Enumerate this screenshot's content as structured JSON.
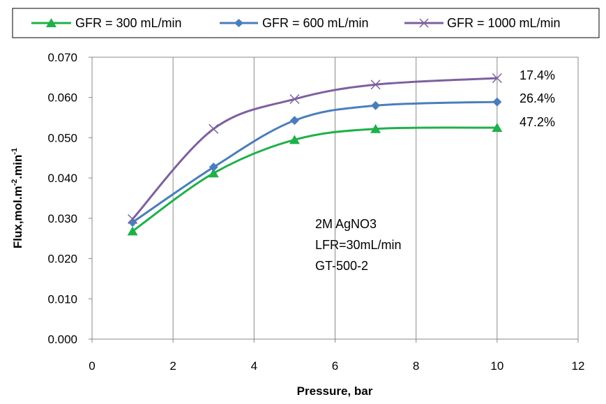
{
  "chart_data": {
    "type": "line",
    "title": "",
    "xlabel": "Pressure, bar",
    "ylabel": {
      "base": "Flux,mol.m",
      "exp1": "-2",
      "mid": ".min",
      "exp2": "-1"
    },
    "xlim": [
      0,
      12
    ],
    "ylim": [
      0,
      0.07
    ],
    "xticks": [
      0,
      2,
      4,
      6,
      8,
      10,
      12
    ],
    "yticks": [
      0,
      0.01,
      0.02,
      0.03,
      0.04,
      0.05,
      0.06,
      0.07
    ],
    "ytick_labels": [
      "0.000",
      "0.010",
      "0.020",
      "0.030",
      "0.040",
      "0.050",
      "0.060",
      "0.070"
    ],
    "xtick_labels": [
      "0",
      "2",
      "4",
      "6",
      "8",
      "10",
      "12"
    ],
    "grid": "vertical",
    "legend_position": "top",
    "series": [
      {
        "name": "GFR = 300 mL/min",
        "marker": "triangle",
        "color": "#1fb04a",
        "x": [
          1,
          3,
          5,
          7,
          10
        ],
        "y": [
          0.0268,
          0.0412,
          0.0495,
          0.0522,
          0.0525
        ]
      },
      {
        "name": "GFR = 600 mL/min",
        "marker": "diamond",
        "color": "#4a7ebb",
        "x": [
          1,
          3,
          5,
          7,
          10
        ],
        "y": [
          0.029,
          0.0427,
          0.0543,
          0.058,
          0.0589
        ]
      },
      {
        "name": "GFR = 1000 mL/min",
        "marker": "x",
        "color": "#7d5fa0",
        "x": [
          1,
          3,
          5,
          7,
          10
        ],
        "y": [
          0.0298,
          0.0522,
          0.0596,
          0.0632,
          0.0648
        ]
      }
    ],
    "annotations": {
      "conditions": [
        "2M AgNO3",
        "LFR=30mL/min",
        "GT-500-2"
      ],
      "percentages": [
        "17.4%",
        "26.4%",
        "47.2%"
      ]
    }
  }
}
